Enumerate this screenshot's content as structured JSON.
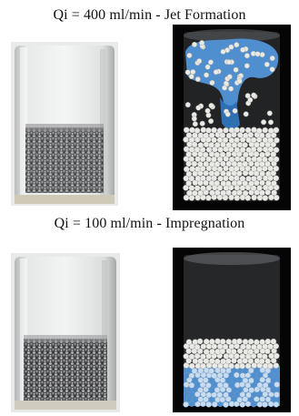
{
  "sections": [
    {
      "caption": "Qi = 400 ml/min - Jet Formation",
      "photo_name": "experiment-photo-jet-formation",
      "simulation_name": "simulation-render-jet-formation"
    },
    {
      "caption": "Qi = 100 ml/min - Impregnation",
      "photo_name": "experiment-photo-impregnation",
      "simulation_name": "simulation-render-impregnation"
    }
  ],
  "colors": {
    "water": "#4f8fd0",
    "water_dark": "#2f6fb4",
    "particle": "#e9e9e6",
    "simulation_background": "#050505",
    "glass": "#d6d8d8"
  }
}
